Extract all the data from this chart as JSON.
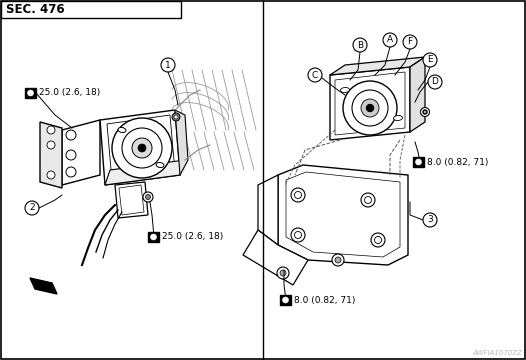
{
  "title": "SEC. 476",
  "watermark": "AWFIA1070ZZ",
  "bg_color": "#ffffff",
  "figsize": [
    5.26,
    3.6
  ],
  "dpi": 100,
  "left_torque_top": "25.0 (2.6, 18)",
  "left_torque_bottom": "25.0 (2.6, 18)",
  "right_torque_mid": "8.0 (0.82, 71)",
  "right_torque_bottom": "8.0 (0.82, 71)"
}
